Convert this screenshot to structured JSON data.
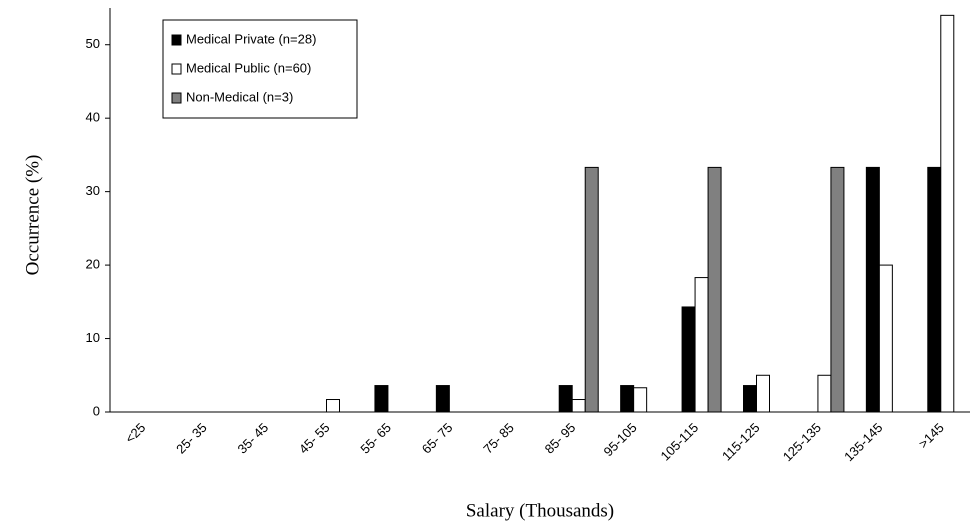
{
  "chart_data": {
    "type": "bar",
    "x_label": "Salary (Thousands)",
    "y_label": "Occurrence (%)",
    "categories": [
      "<25",
      "25- 35",
      "35- 45",
      "45- 55",
      "55- 65",
      "65- 75",
      "75- 85",
      "85- 95",
      "95-105",
      "105-115",
      "115-125",
      "125-135",
      "135-145",
      ">145"
    ],
    "series": [
      {
        "name": "Medical Private (n=28)",
        "color": "#000000",
        "values": [
          0,
          0,
          0,
          0,
          3.6,
          3.6,
          0,
          3.6,
          3.6,
          14.3,
          3.6,
          0,
          33.3,
          33.3
        ]
      },
      {
        "name": "Medical Public (n=60)",
        "color": "#ffffff",
        "values": [
          0,
          0,
          0,
          1.7,
          0,
          0,
          0,
          1.7,
          3.3,
          18.3,
          5,
          5,
          20,
          54
        ]
      },
      {
        "name": "Non-Medical (n=3)",
        "color": "#808080",
        "values": [
          0,
          0,
          0,
          0,
          0,
          0,
          0,
          33.3,
          0,
          33.3,
          0,
          33.3,
          0,
          0
        ]
      }
    ],
    "ylim": [
      0,
      55
    ],
    "yticks": [
      0,
      10,
      20,
      30,
      40,
      50
    ],
    "grid": false,
    "legend": "upper left"
  }
}
